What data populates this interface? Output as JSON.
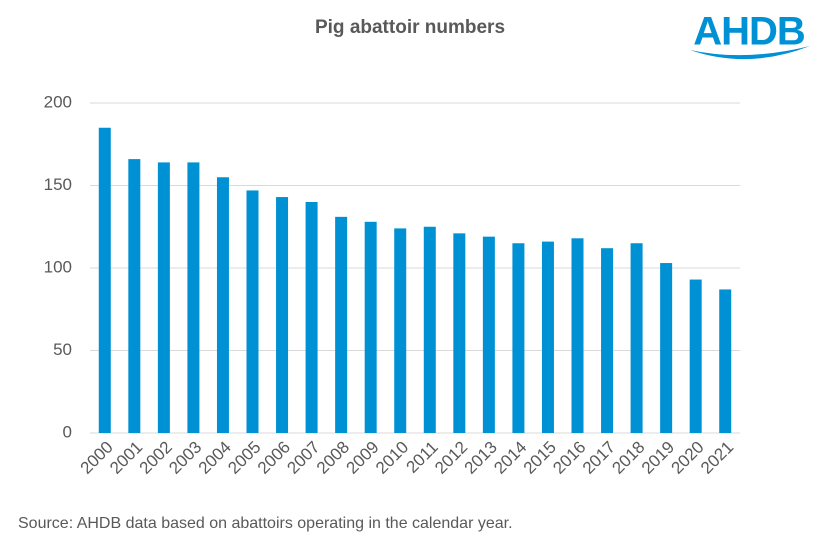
{
  "logo": "AHDB",
  "chart_data": {
    "type": "bar",
    "title": "Pig abattoir numbers",
    "categories": [
      "2000",
      "2001",
      "2002",
      "2003",
      "2004",
      "2005",
      "2006",
      "2007",
      "2008",
      "2009",
      "2010",
      "2011",
      "2012",
      "2013",
      "2014",
      "2015",
      "2016",
      "2017",
      "2018",
      "2019",
      "2020",
      "2021"
    ],
    "values": [
      185,
      166,
      164,
      164,
      155,
      147,
      143,
      140,
      131,
      128,
      124,
      125,
      121,
      119,
      115,
      116,
      118,
      112,
      115,
      103,
      93,
      87
    ],
    "color": "#0091d5",
    "ylim": [
      0,
      200
    ],
    "yticks": [
      0,
      50,
      100,
      150,
      200
    ],
    "grid": true,
    "source": "Source:  AHDB data based on abattoirs operating in the calendar year."
  }
}
